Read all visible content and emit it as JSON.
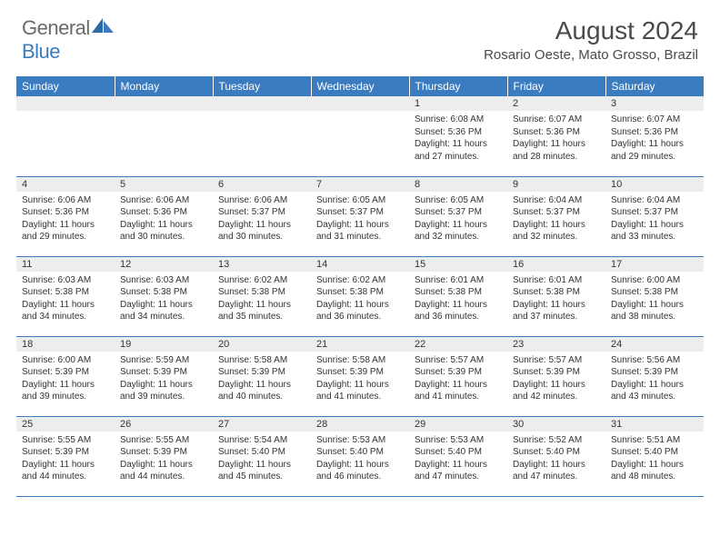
{
  "logo": {
    "text1": "General",
    "text2": "Blue"
  },
  "title": "August 2024",
  "location": "Rosario Oeste, Mato Grosso, Brazil",
  "colors": {
    "header_bg": "#3b7bbf",
    "header_text": "#ffffff",
    "daynum_bg": "#eceded",
    "border": "#3b7bbf",
    "body_text": "#333333",
    "logo_gray": "#6a6a6a",
    "logo_blue": "#3b7bbf"
  },
  "daysOfWeek": [
    "Sunday",
    "Monday",
    "Tuesday",
    "Wednesday",
    "Thursday",
    "Friday",
    "Saturday"
  ],
  "weeks": [
    [
      {
        "n": "",
        "lines": []
      },
      {
        "n": "",
        "lines": []
      },
      {
        "n": "",
        "lines": []
      },
      {
        "n": "",
        "lines": []
      },
      {
        "n": "1",
        "lines": [
          "Sunrise: 6:08 AM",
          "Sunset: 5:36 PM",
          "Daylight: 11 hours and 27 minutes."
        ]
      },
      {
        "n": "2",
        "lines": [
          "Sunrise: 6:07 AM",
          "Sunset: 5:36 PM",
          "Daylight: 11 hours and 28 minutes."
        ]
      },
      {
        "n": "3",
        "lines": [
          "Sunrise: 6:07 AM",
          "Sunset: 5:36 PM",
          "Daylight: 11 hours and 29 minutes."
        ]
      }
    ],
    [
      {
        "n": "4",
        "lines": [
          "Sunrise: 6:06 AM",
          "Sunset: 5:36 PM",
          "Daylight: 11 hours and 29 minutes."
        ]
      },
      {
        "n": "5",
        "lines": [
          "Sunrise: 6:06 AM",
          "Sunset: 5:36 PM",
          "Daylight: 11 hours and 30 minutes."
        ]
      },
      {
        "n": "6",
        "lines": [
          "Sunrise: 6:06 AM",
          "Sunset: 5:37 PM",
          "Daylight: 11 hours and 30 minutes."
        ]
      },
      {
        "n": "7",
        "lines": [
          "Sunrise: 6:05 AM",
          "Sunset: 5:37 PM",
          "Daylight: 11 hours and 31 minutes."
        ]
      },
      {
        "n": "8",
        "lines": [
          "Sunrise: 6:05 AM",
          "Sunset: 5:37 PM",
          "Daylight: 11 hours and 32 minutes."
        ]
      },
      {
        "n": "9",
        "lines": [
          "Sunrise: 6:04 AM",
          "Sunset: 5:37 PM",
          "Daylight: 11 hours and 32 minutes."
        ]
      },
      {
        "n": "10",
        "lines": [
          "Sunrise: 6:04 AM",
          "Sunset: 5:37 PM",
          "Daylight: 11 hours and 33 minutes."
        ]
      }
    ],
    [
      {
        "n": "11",
        "lines": [
          "Sunrise: 6:03 AM",
          "Sunset: 5:38 PM",
          "Daylight: 11 hours and 34 minutes."
        ]
      },
      {
        "n": "12",
        "lines": [
          "Sunrise: 6:03 AM",
          "Sunset: 5:38 PM",
          "Daylight: 11 hours and 34 minutes."
        ]
      },
      {
        "n": "13",
        "lines": [
          "Sunrise: 6:02 AM",
          "Sunset: 5:38 PM",
          "Daylight: 11 hours and 35 minutes."
        ]
      },
      {
        "n": "14",
        "lines": [
          "Sunrise: 6:02 AM",
          "Sunset: 5:38 PM",
          "Daylight: 11 hours and 36 minutes."
        ]
      },
      {
        "n": "15",
        "lines": [
          "Sunrise: 6:01 AM",
          "Sunset: 5:38 PM",
          "Daylight: 11 hours and 36 minutes."
        ]
      },
      {
        "n": "16",
        "lines": [
          "Sunrise: 6:01 AM",
          "Sunset: 5:38 PM",
          "Daylight: 11 hours and 37 minutes."
        ]
      },
      {
        "n": "17",
        "lines": [
          "Sunrise: 6:00 AM",
          "Sunset: 5:38 PM",
          "Daylight: 11 hours and 38 minutes."
        ]
      }
    ],
    [
      {
        "n": "18",
        "lines": [
          "Sunrise: 6:00 AM",
          "Sunset: 5:39 PM",
          "Daylight: 11 hours and 39 minutes."
        ]
      },
      {
        "n": "19",
        "lines": [
          "Sunrise: 5:59 AM",
          "Sunset: 5:39 PM",
          "Daylight: 11 hours and 39 minutes."
        ]
      },
      {
        "n": "20",
        "lines": [
          "Sunrise: 5:58 AM",
          "Sunset: 5:39 PM",
          "Daylight: 11 hours and 40 minutes."
        ]
      },
      {
        "n": "21",
        "lines": [
          "Sunrise: 5:58 AM",
          "Sunset: 5:39 PM",
          "Daylight: 11 hours and 41 minutes."
        ]
      },
      {
        "n": "22",
        "lines": [
          "Sunrise: 5:57 AM",
          "Sunset: 5:39 PM",
          "Daylight: 11 hours and 41 minutes."
        ]
      },
      {
        "n": "23",
        "lines": [
          "Sunrise: 5:57 AM",
          "Sunset: 5:39 PM",
          "Daylight: 11 hours and 42 minutes."
        ]
      },
      {
        "n": "24",
        "lines": [
          "Sunrise: 5:56 AM",
          "Sunset: 5:39 PM",
          "Daylight: 11 hours and 43 minutes."
        ]
      }
    ],
    [
      {
        "n": "25",
        "lines": [
          "Sunrise: 5:55 AM",
          "Sunset: 5:39 PM",
          "Daylight: 11 hours and 44 minutes."
        ]
      },
      {
        "n": "26",
        "lines": [
          "Sunrise: 5:55 AM",
          "Sunset: 5:39 PM",
          "Daylight: 11 hours and 44 minutes."
        ]
      },
      {
        "n": "27",
        "lines": [
          "Sunrise: 5:54 AM",
          "Sunset: 5:40 PM",
          "Daylight: 11 hours and 45 minutes."
        ]
      },
      {
        "n": "28",
        "lines": [
          "Sunrise: 5:53 AM",
          "Sunset: 5:40 PM",
          "Daylight: 11 hours and 46 minutes."
        ]
      },
      {
        "n": "29",
        "lines": [
          "Sunrise: 5:53 AM",
          "Sunset: 5:40 PM",
          "Daylight: 11 hours and 47 minutes."
        ]
      },
      {
        "n": "30",
        "lines": [
          "Sunrise: 5:52 AM",
          "Sunset: 5:40 PM",
          "Daylight: 11 hours and 47 minutes."
        ]
      },
      {
        "n": "31",
        "lines": [
          "Sunrise: 5:51 AM",
          "Sunset: 5:40 PM",
          "Daylight: 11 hours and 48 minutes."
        ]
      }
    ]
  ]
}
